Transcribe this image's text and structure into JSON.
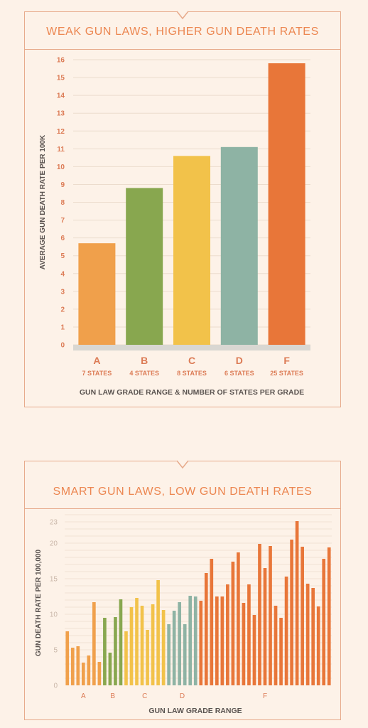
{
  "charts": [
    {
      "title": "WEAK GUN LAWS, HIGHER GUN DEATH RATES",
      "chart_data": {
        "type": "bar",
        "title": "WEAK GUN LAWS, HIGHER GUN DEATH RATES",
        "xlabel": "GUN LAW GRADE RANGE & NUMBER OF STATES PER GRADE",
        "ylabel": "AVERAGE GUN DEATH RATE PER 100K",
        "ylim": [
          0,
          16
        ],
        "yticks": [
          0,
          1,
          2,
          3,
          4,
          5,
          6,
          7,
          8,
          9,
          10,
          11,
          12,
          13,
          14,
          15,
          16
        ],
        "grid": true,
        "categories": [
          "A",
          "B",
          "C",
          "D",
          "F"
        ],
        "sublabels": [
          "7 STATES",
          "4 STATES",
          "8 STATES",
          "6 STATES",
          "25 STATES"
        ],
        "values": [
          5.7,
          8.8,
          10.6,
          11.1,
          15.8
        ],
        "colors": [
          "#f0a04b",
          "#88a74f",
          "#f2c24a",
          "#8eb3a4",
          "#e87639"
        ]
      }
    },
    {
      "title": "SMART GUN LAWS, LOW GUN DEATH RATES",
      "chart_data": {
        "type": "bar",
        "title": "SMART GUN LAWS, LOW GUN DEATH RATES",
        "xlabel": "GUN LAW GRADE RANGE",
        "ylabel": "GUN DEATH RATE PER 100,000",
        "ylim": [
          0,
          24
        ],
        "yticks": [
          0,
          5,
          10,
          15,
          20,
          23
        ],
        "grid": true,
        "groups": [
          {
            "name": "A",
            "color": "#f0a04b",
            "values": [
              7.6,
              5.3,
              5.5,
              3.2,
              4.2,
              11.7,
              3.3
            ]
          },
          {
            "name": "B",
            "color": "#88a74f",
            "values": [
              9.5,
              4.6,
              9.6,
              12.1
            ]
          },
          {
            "name": "C",
            "color": "#f2c24a",
            "values": [
              7.6,
              11.0,
              12.3,
              11.2,
              7.8,
              11.4,
              14.8,
              10.6
            ]
          },
          {
            "name": "D",
            "color": "#8eb3a4",
            "values": [
              8.6,
              10.5,
              11.7,
              8.6,
              12.6,
              12.5
            ]
          },
          {
            "name": "F",
            "color": "#e87639",
            "values": [
              11.9,
              15.8,
              17.8,
              12.5,
              12.5,
              14.2,
              17.4,
              18.7,
              11.6,
              14.2,
              9.9,
              19.9,
              16.5,
              19.6,
              11.2,
              9.5,
              15.3,
              20.5,
              23.1,
              19.5,
              14.3,
              13.7,
              11.1,
              17.8,
              19.4
            ]
          }
        ]
      }
    }
  ]
}
